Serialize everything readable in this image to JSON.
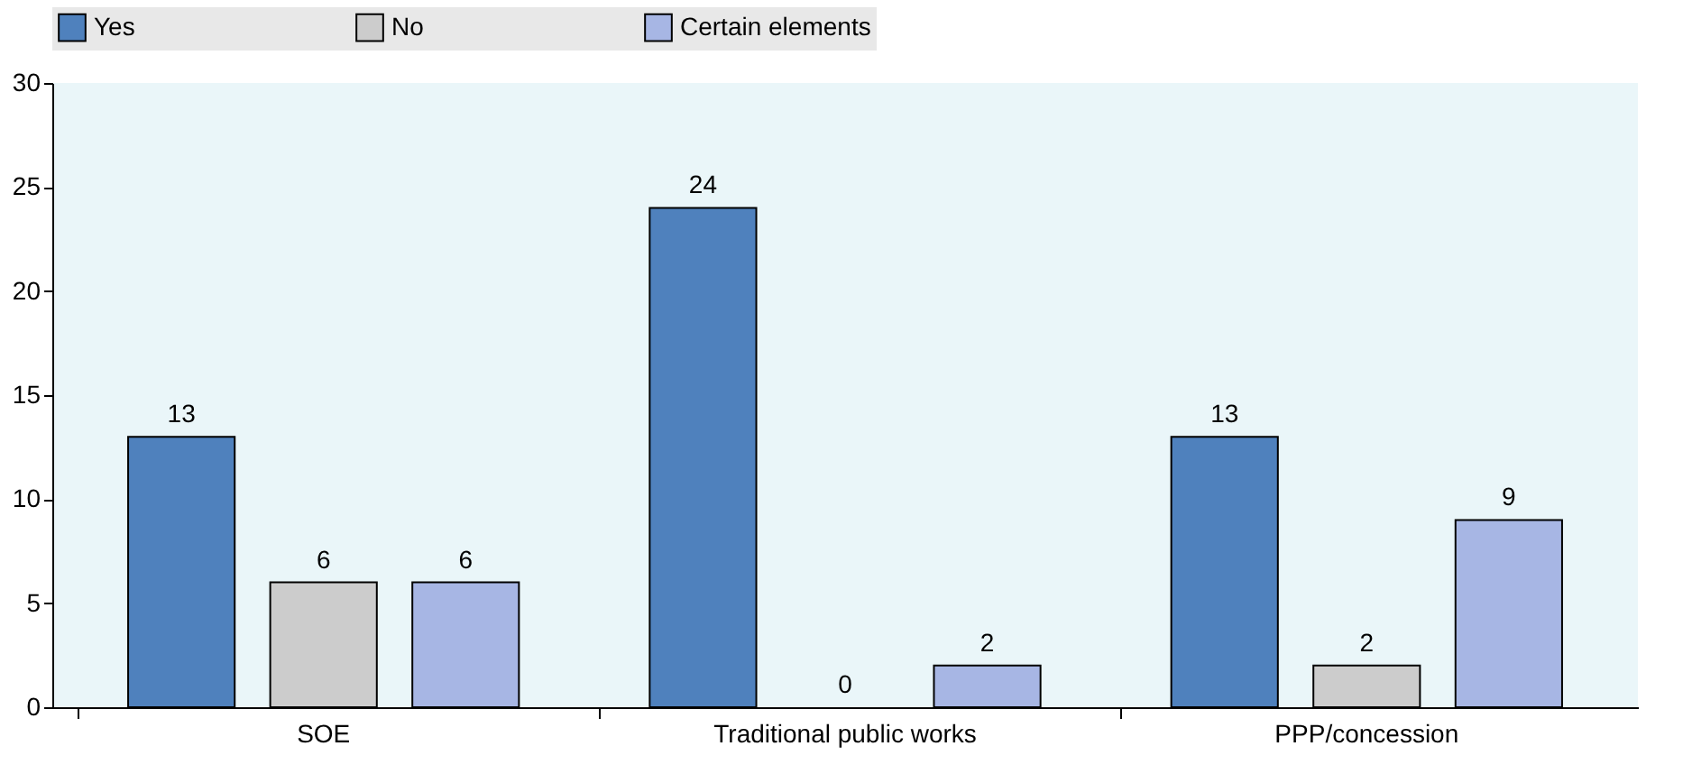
{
  "chart_data": {
    "type": "bar",
    "categories": [
      "SOE",
      "Traditional public works",
      "PPP/concession"
    ],
    "series": [
      {
        "name": "Yes",
        "color": "#4f81bd",
        "values": [
          13,
          24,
          13
        ]
      },
      {
        "name": "No",
        "color": "#cccccc",
        "values": [
          6,
          0,
          2
        ]
      },
      {
        "name": "Certain elements",
        "color": "#a7b6e4",
        "values": [
          6,
          2,
          9
        ]
      }
    ],
    "ylim": [
      0,
      30
    ],
    "yticks": [
      0,
      5,
      10,
      15,
      20,
      25,
      30
    ],
    "grid": false,
    "legend": "top",
    "data_labels": true
  }
}
